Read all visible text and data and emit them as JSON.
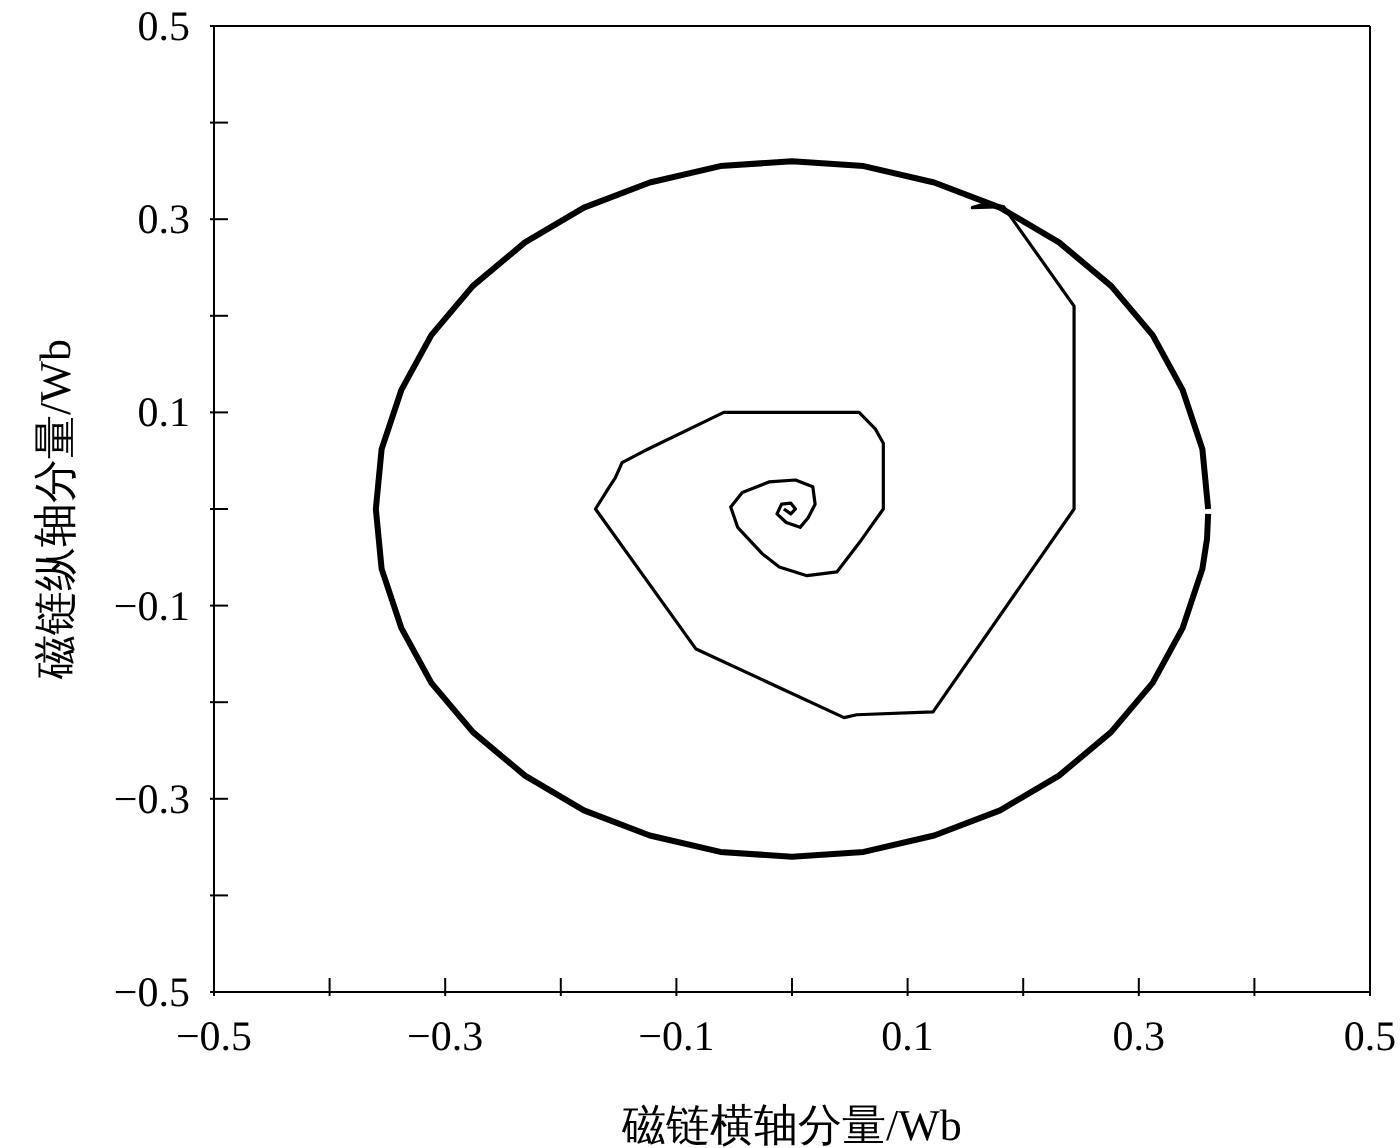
{
  "chart_data": {
    "type": "line",
    "xlabel": "磁链横轴分量/Wb",
    "ylabel": "磁链纵轴分量/Wb",
    "xlim": [
      -0.5,
      0.5
    ],
    "ylim": [
      -0.5,
      0.5
    ],
    "xticks": [
      -0.5,
      {
        "value": -0.4,
        "label": null
      },
      -0.3,
      {
        "value": -0.2,
        "label": null
      },
      -0.1,
      {
        "value": 0,
        "label": null
      },
      0.1,
      {
        "value": 0.2,
        "label": null
      },
      0.3,
      {
        "value": 0.4,
        "label": null
      },
      0.5
    ],
    "yticks": [
      -0.5,
      {
        "value": -0.4,
        "label": null
      },
      -0.3,
      {
        "value": -0.2,
        "label": null
      },
      -0.1,
      {
        "value": 0,
        "label": null
      },
      0.1,
      {
        "value": 0.2,
        "label": null
      },
      0.3,
      {
        "value": 0.4,
        "label": null
      },
      0.5
    ],
    "legend": false,
    "marker": "none",
    "line_style": "solid",
    "series": [
      {
        "color": "#000000",
        "x": [
          -0.007,
          -0.001,
          0.003,
          -0.001,
          -0.009,
          -0.013,
          -0.005,
          0.007,
          0.014,
          0.02,
          0.018,
          0.003,
          -0.02,
          -0.043,
          -0.053,
          -0.047,
          -0.026,
          -0.011,
          0.013,
          0.039,
          0.06,
          0.079,
          0.079,
          0.072,
          0.058,
          -0.059,
          -0.128,
          -0.147,
          -0.153,
          -0.158,
          -0.17,
          -0.083,
          0.045,
          0.056,
          0.122,
          0.244,
          0.244,
          0.183,
          0.156,
          0.164,
          0.183
        ],
        "values": [
          0,
          -0.005,
          0,
          0.006,
          0.005,
          -0.005,
          -0.014,
          -0.019,
          -0.009,
          0.005,
          0.023,
          0.03,
          0.028,
          0.017,
          0.002,
          -0.019,
          -0.046,
          -0.06,
          -0.069,
          -0.065,
          -0.032,
          0,
          0.068,
          0.083,
          0.1,
          0.1,
          0.06,
          0.048,
          0.032,
          0.023,
          0,
          -0.145,
          -0.216,
          -0.213,
          -0.21,
          0,
          0.21,
          0.313,
          0.312,
          0.315,
          0.313
        ]
      },
      {
        "color": "#000000",
        "x": [
          0.36,
          0.355,
          0.338,
          0.312,
          0.276,
          0.231,
          0.18,
          0.123,
          0.062,
          0,
          -0.062,
          -0.123,
          -0.18,
          -0.231,
          -0.276,
          -0.312,
          -0.338,
          -0.355,
          -0.36,
          -0.355,
          -0.338,
          -0.312,
          -0.276,
          -0.231,
          -0.18,
          -0.123,
          -0.062,
          0,
          0.062,
          0.123,
          0.18,
          0.231,
          0.276,
          0.312,
          0.338,
          0.355,
          0.359,
          0.36
        ],
        "values": [
          0,
          0.062,
          0.123,
          0.18,
          0.231,
          0.276,
          0.312,
          0.338,
          0.355,
          0.36,
          0.355,
          0.338,
          0.312,
          0.276,
          0.231,
          0.18,
          0.123,
          0.062,
          0,
          -0.062,
          -0.123,
          -0.18,
          -0.231,
          -0.276,
          -0.312,
          -0.338,
          -0.355,
          -0.36,
          -0.355,
          -0.338,
          -0.312,
          -0.276,
          -0.231,
          -0.18,
          -0.123,
          -0.062,
          -0.031,
          -0.005
        ]
      }
    ]
  }
}
